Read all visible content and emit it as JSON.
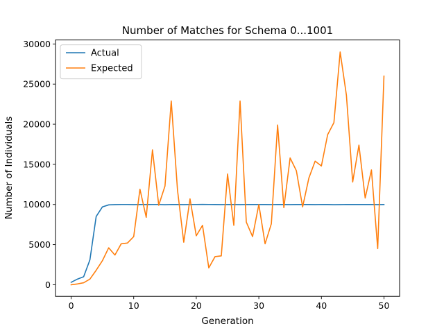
{
  "chart_data": {
    "type": "line",
    "title": "Number of Matches for Schema 0...1001",
    "xlabel": "Generation",
    "ylabel": "Number of Individuals",
    "xlim": [
      -2.5,
      52.5
    ],
    "ylim": [
      -1450,
      30500
    ],
    "xticks": [
      0,
      10,
      20,
      30,
      40,
      50
    ],
    "yticks": [
      0,
      5000,
      10000,
      15000,
      20000,
      25000,
      30000
    ],
    "grid": false,
    "legend_position": "top-left",
    "x": [
      0,
      1,
      2,
      3,
      4,
      5,
      6,
      7,
      8,
      9,
      10,
      11,
      12,
      13,
      14,
      15,
      16,
      17,
      18,
      19,
      20,
      21,
      22,
      23,
      24,
      25,
      26,
      27,
      28,
      29,
      30,
      31,
      32,
      33,
      34,
      35,
      36,
      37,
      38,
      39,
      40,
      41,
      42,
      43,
      44,
      45,
      46,
      47,
      48,
      49,
      50
    ],
    "series": [
      {
        "name": "Actual",
        "color": "#1f77b4",
        "values": [
          300,
          700,
          1000,
          3100,
          8500,
          9700,
          9950,
          9980,
          10000,
          10000,
          9980,
          10000,
          9990,
          10000,
          10000,
          9970,
          10000,
          9990,
          9980,
          10000,
          10000,
          10010,
          10000,
          9990,
          9980,
          10000,
          9990,
          9980,
          10000,
          9990,
          10000,
          9990,
          9980,
          10000,
          9990,
          9980,
          9990,
          10000,
          9990,
          9980,
          10000,
          9990,
          9970,
          9980,
          10000,
          9990,
          10000,
          9990,
          10000,
          9980,
          9990
        ]
      },
      {
        "name": "Expected",
        "color": "#ff7f0e",
        "values": [
          0,
          100,
          250,
          700,
          1800,
          3000,
          4600,
          3700,
          5100,
          5200,
          6000,
          11900,
          8400,
          16800,
          9900,
          12300,
          22900,
          11800,
          5300,
          10700,
          6100,
          7400,
          2100,
          3500,
          3600,
          13800,
          7400,
          22900,
          7800,
          6000,
          10000,
          5100,
          7600,
          19900,
          9600,
          15800,
          14200,
          9700,
          13300,
          15400,
          14800,
          18700,
          20200,
          29000,
          23600,
          12800,
          17400,
          10800,
          14300,
          4500,
          26000
        ]
      }
    ]
  }
}
